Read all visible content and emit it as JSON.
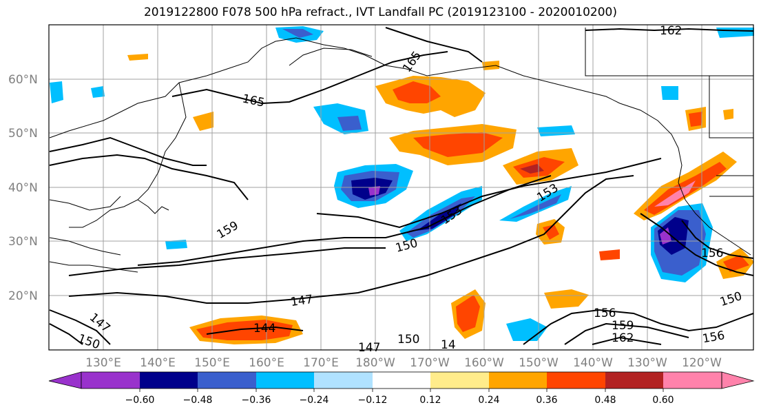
{
  "title": "2019122800 F078 500 hPa refract., IVT Landfall PC (2019123100 - 2020010200)",
  "lat_labels": [
    "20°N",
    "30°N",
    "40°N",
    "50°N",
    "60°N"
  ],
  "lon_labels": [
    "130°E",
    "140°E",
    "150°E",
    "160°E",
    "170°E",
    "180°W",
    "170°W",
    "160°W",
    "150°W",
    "140°W",
    "130°W",
    "120°W"
  ],
  "colorbar": {
    "ticks": [
      "−0.60",
      "−0.48",
      "−0.36",
      "−0.24",
      "−0.12",
      "0.12",
      "0.24",
      "0.36",
      "0.48",
      "0.60"
    ],
    "colors": [
      "#9932cc",
      "#00008b",
      "#3a5fcd",
      "#00bfff",
      "#b0e2ff",
      "#ffffff",
      "#ffec8b",
      "#ffa500",
      "#ff4500",
      "#b22222",
      "#ff82ab"
    ]
  },
  "contour_labels": [
    "162",
    "165",
    "165",
    "159",
    "153",
    "150",
    "147",
    "144",
    "147",
    "150",
    "150",
    "153",
    "156",
    "159",
    "162",
    "156",
    "150",
    "156",
    "14",
    "147"
  ],
  "colors": {
    "outline": "#000000",
    "grid": "#a0a0a0",
    "coast": "#000000"
  }
}
